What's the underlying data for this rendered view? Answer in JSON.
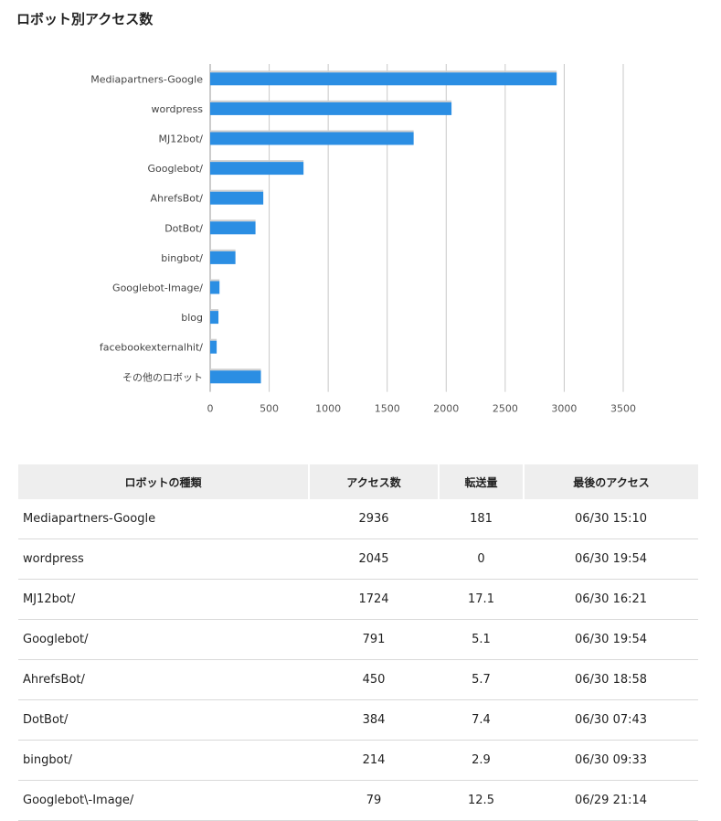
{
  "page": {
    "title": "ロボット別アクセス数"
  },
  "chart_data": {
    "type": "bar",
    "orientation": "horizontal",
    "categories": [
      "Mediapartners-Google",
      "wordpress",
      "MJ12bot/",
      "Googlebot/",
      "AhrefsBot/",
      "DotBot/",
      "bingbot/",
      "Googlebot-Image/",
      "blog",
      "facebookexternalhit/",
      "その他のロボット"
    ],
    "values": [
      2936,
      2045,
      1724,
      791,
      450,
      384,
      214,
      79,
      70,
      55,
      430
    ],
    "xlim": [
      0,
      3500
    ],
    "xticks": [
      0,
      500,
      1000,
      1500,
      2000,
      2500,
      3000,
      3500
    ],
    "grid": true,
    "bar_color": "#2b8ee3",
    "title": "",
    "xlabel": "",
    "ylabel": ""
  },
  "table": {
    "headers": [
      "ロボットの種類",
      "アクセス数",
      "転送量",
      "最後のアクセス"
    ],
    "rows": [
      [
        "Mediapartners-Google",
        "2936",
        "181",
        "06/30 15:10"
      ],
      [
        "wordpress",
        "2045",
        "0",
        "06/30 19:54"
      ],
      [
        "MJ12bot/",
        "1724",
        "17.1",
        "06/30 16:21"
      ],
      [
        "Googlebot/",
        "791",
        "5.1",
        "06/30 19:54"
      ],
      [
        "AhrefsBot/",
        "450",
        "5.7",
        "06/30 18:58"
      ],
      [
        "DotBot/",
        "384",
        "7.4",
        "06/30 07:43"
      ],
      [
        "bingbot/",
        "214",
        "2.9",
        "06/30 09:33"
      ],
      [
        "Googlebot\\-Image/",
        "79",
        "12.5",
        "06/29 21:14"
      ]
    ]
  }
}
